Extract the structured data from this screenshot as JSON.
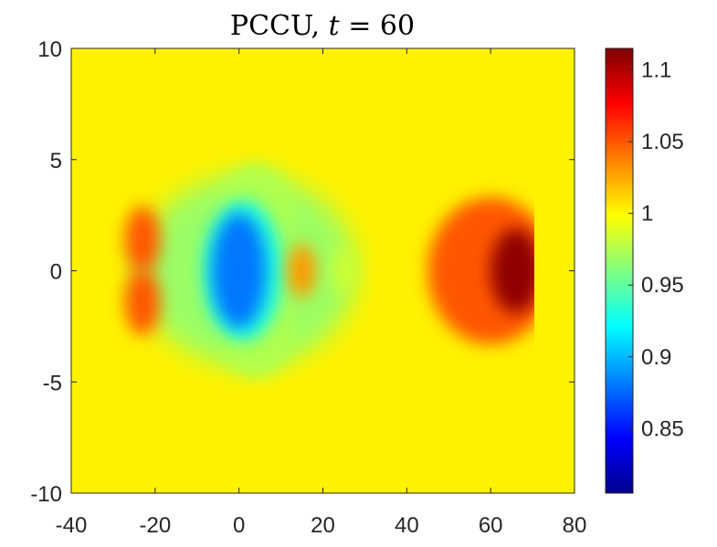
{
  "chart_data": {
    "type": "heatmap",
    "title_parts": {
      "method": "PCCU, ",
      "var": "t",
      "eq": " = 60"
    },
    "xlabel": "",
    "ylabel": "",
    "xlim": [
      -40,
      80
    ],
    "ylim": [
      -10,
      10
    ],
    "x_ticks": [
      "-40",
      "-20",
      "0",
      "20",
      "40",
      "60",
      "80"
    ],
    "y_ticks": [
      "10",
      "5",
      "0",
      "-5",
      "-10"
    ],
    "colorbar": {
      "range": [
        0.805,
        1.115
      ],
      "ticks": [
        "1.1",
        "1.05",
        "1",
        "0.95",
        "0.9",
        "0.85"
      ],
      "colormap": "jet"
    },
    "background_value": 1.0,
    "features": [
      {
        "x": -23,
        "y": 1.4,
        "value": 1.05
      },
      {
        "x": -23,
        "y": -1.4,
        "value": 1.05
      },
      {
        "x": 0,
        "y": 0,
        "value": 0.88
      },
      {
        "x": 15,
        "y": 0,
        "value": 1.03
      },
      {
        "x": 25,
        "y": 0,
        "value": 0.985
      },
      {
        "x": 67,
        "y": 0,
        "value": 1.11
      }
    ],
    "grid": false
  }
}
